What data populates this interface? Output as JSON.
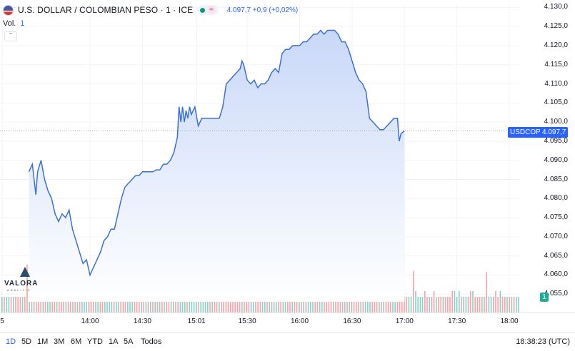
{
  "header": {
    "title": "U.S. DOLLAR / COLOMBIAN PESO · 1 · ICE",
    "wave_icon": "≈",
    "price_change": "4.097,7  +0,9 (+0,02%)",
    "vol_label": "Vol.",
    "vol_value": "1",
    "collapse_icon": "chevron-up-icon"
  },
  "price_tag": {
    "symbol": "USDCOP",
    "price": "4.097,7"
  },
  "volume_badge": "1",
  "logo": {
    "name": "VALORA",
    "sub": "ANALITIK"
  },
  "ranges": [
    {
      "label": "1D",
      "active": true
    },
    {
      "label": "5D"
    },
    {
      "label": "1M"
    },
    {
      "label": "3M"
    },
    {
      "label": "6M"
    },
    {
      "label": "YTD"
    },
    {
      "label": "1A"
    },
    {
      "label": "5A"
    },
    {
      "label": "Todos"
    }
  ],
  "clock": "18:38:23 (UTC)",
  "colors": {
    "line": "#3a6fd8",
    "fill": "#dbe6fb",
    "up": "#22ab94",
    "down": "#f7525f",
    "accent": "#2962ff"
  },
  "chart_data": {
    "type": "area",
    "y_ticks": [
      "4.130,0",
      "4.125,0",
      "4.120,0",
      "4.115,0",
      "4.110,0",
      "4.105,0",
      "4.100,0",
      "4.095,0",
      "4.090,0",
      "4.085,0",
      "4.080,0",
      "4.075,0",
      "4.070,0",
      "4.065,0",
      "4.060,0",
      "4.055,0"
    ],
    "x_ticks": [
      "5",
      "14:00",
      "14:30",
      "15:01",
      "15:30",
      "16:00",
      "16:30",
      "17:00",
      "17:30",
      "18:00"
    ],
    "ylim": [
      4053,
      4131
    ],
    "x_range": [
      "13:25",
      "18:38"
    ],
    "last_price": 4097.7,
    "series": [
      {
        "values": [
          [
            "13:25",
            4087
          ],
          [
            "13:27",
            4089
          ],
          [
            "13:29",
            4081
          ],
          [
            "13:30",
            4087
          ],
          [
            "13:32",
            4090
          ],
          [
            "13:34",
            4085
          ],
          [
            "13:36",
            4082
          ],
          [
            "13:38",
            4080
          ],
          [
            "13:40",
            4076
          ],
          [
            "13:42",
            4074
          ],
          [
            "13:44",
            4076
          ],
          [
            "13:46",
            4075
          ],
          [
            "13:48",
            4077
          ],
          [
            "13:50",
            4072
          ],
          [
            "13:52",
            4069
          ],
          [
            "13:54",
            4066
          ],
          [
            "13:56",
            4063
          ],
          [
            "13:58",
            4064
          ],
          [
            "14:00",
            4060
          ],
          [
            "14:02",
            4062
          ],
          [
            "14:04",
            4064
          ],
          [
            "14:06",
            4066
          ],
          [
            "14:08",
            4069
          ],
          [
            "14:10",
            4070
          ],
          [
            "14:12",
            4072
          ],
          [
            "14:14",
            4072
          ],
          [
            "14:16",
            4076
          ],
          [
            "14:18",
            4080
          ],
          [
            "14:20",
            4083
          ],
          [
            "14:22",
            4084
          ],
          [
            "14:24",
            4085
          ],
          [
            "14:26",
            4086
          ],
          [
            "14:28",
            4086
          ],
          [
            "14:30",
            4087
          ],
          [
            "14:32",
            4087
          ],
          [
            "14:34",
            4087
          ],
          [
            "14:36",
            4087
          ],
          [
            "14:38",
            4087.5
          ],
          [
            "14:40",
            4087.5
          ],
          [
            "14:42",
            4089
          ],
          [
            "14:44",
            4089
          ],
          [
            "14:46",
            4090
          ],
          [
            "14:48",
            4092
          ],
          [
            "14:50",
            4096
          ],
          [
            "14:51",
            4104
          ],
          [
            "14:52",
            4100
          ],
          [
            "14:53",
            4104
          ],
          [
            "14:54",
            4100
          ],
          [
            "14:55",
            4103
          ],
          [
            "14:56",
            4101
          ],
          [
            "14:57",
            4104
          ],
          [
            "14:58",
            4102
          ],
          [
            "15:00",
            4104
          ],
          [
            "15:02",
            4099
          ],
          [
            "15:04",
            4101
          ],
          [
            "15:06",
            4101
          ],
          [
            "15:10",
            4101
          ],
          [
            "15:14",
            4101
          ],
          [
            "15:16",
            4104
          ],
          [
            "15:18",
            4110
          ],
          [
            "15:20",
            4111
          ],
          [
            "15:22",
            4112
          ],
          [
            "15:24",
            4113
          ],
          [
            "15:26",
            4114
          ],
          [
            "15:27",
            4116
          ],
          [
            "15:28",
            4115
          ],
          [
            "15:30",
            4111
          ],
          [
            "15:32",
            4110
          ],
          [
            "15:34",
            4111
          ],
          [
            "15:36",
            4109
          ],
          [
            "15:38",
            4110
          ],
          [
            "15:40",
            4110
          ],
          [
            "15:42",
            4111
          ],
          [
            "15:44",
            4113
          ],
          [
            "15:46",
            4114
          ],
          [
            "15:48",
            4113
          ],
          [
            "15:50",
            4118
          ],
          [
            "15:52",
            4119
          ],
          [
            "15:54",
            4119
          ],
          [
            "15:56",
            4120
          ],
          [
            "15:58",
            4120
          ],
          [
            "16:00",
            4120
          ],
          [
            "16:02",
            4121
          ],
          [
            "16:04",
            4121
          ],
          [
            "16:06",
            4122
          ],
          [
            "16:08",
            4123
          ],
          [
            "16:10",
            4123
          ],
          [
            "16:12",
            4124
          ],
          [
            "16:14",
            4123
          ],
          [
            "16:16",
            4124
          ],
          [
            "16:18",
            4124
          ],
          [
            "16:20",
            4124
          ],
          [
            "16:22",
            4123
          ],
          [
            "16:24",
            4121
          ],
          [
            "16:26",
            4121
          ],
          [
            "16:28",
            4119
          ],
          [
            "16:30",
            4116
          ],
          [
            "16:32",
            4113
          ],
          [
            "16:34",
            4111
          ],
          [
            "16:36",
            4110
          ],
          [
            "16:38",
            4108
          ],
          [
            "16:40",
            4101
          ],
          [
            "16:42",
            4100
          ],
          [
            "16:44",
            4099
          ],
          [
            "16:46",
            4098
          ],
          [
            "16:48",
            4098
          ],
          [
            "16:50",
            4099
          ],
          [
            "16:52",
            4100
          ],
          [
            "16:54",
            4101
          ],
          [
            "16:56",
            4101
          ],
          [
            "16:57",
            4095
          ],
          [
            "16:58",
            4097
          ],
          [
            "17:00",
            4097.7
          ]
        ]
      }
    ],
    "volume": {
      "type": "bar",
      "colors": [
        "up",
        "down"
      ],
      "max_label": "1"
    }
  }
}
